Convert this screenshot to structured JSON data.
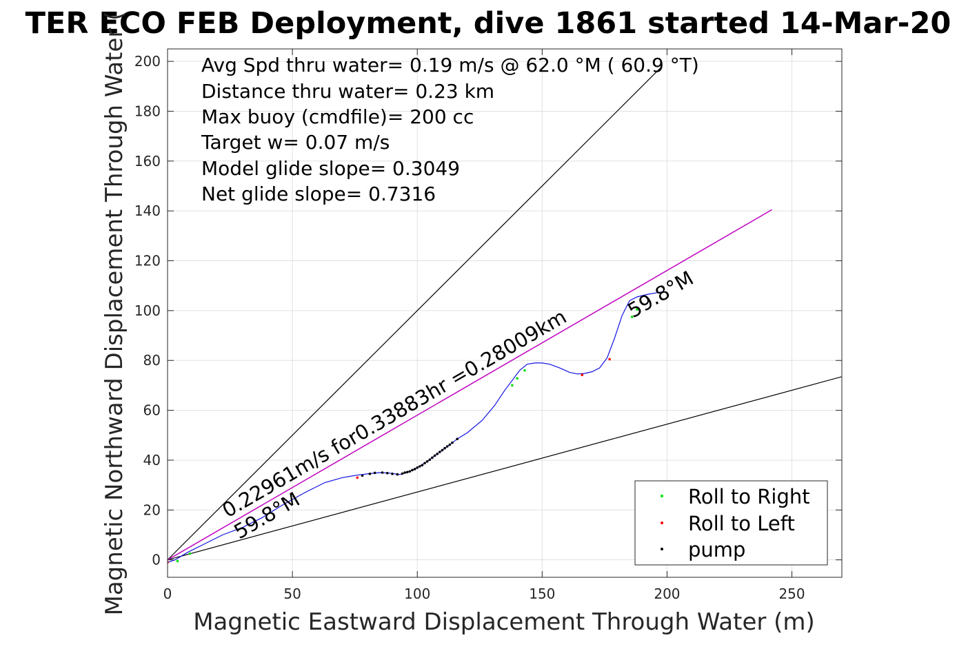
{
  "chart_data": {
    "type": "line",
    "title": "TER ECO FEB Deployment, dive 1861 started 14-Mar-20",
    "xlabel": "Magnetic Eastward Displacement Through Water (m)",
    "ylabel": "Magnetic Northward Displacement Through Water (",
    "xlim": [
      0,
      270
    ],
    "ylim": [
      -7,
      205
    ],
    "xticks": [
      0,
      50,
      100,
      150,
      200,
      250
    ],
    "yticks": [
      0,
      20,
      40,
      60,
      80,
      100,
      120,
      140,
      160,
      180,
      200
    ],
    "xtick_labels": [
      "0",
      "50",
      "100",
      "150",
      "200",
      "250"
    ],
    "ytick_labels": [
      "0",
      "20",
      "40",
      "60",
      "80",
      "100",
      "120",
      "140",
      "160",
      "180",
      "200"
    ],
    "grid": true,
    "legend_position": "bottom-right",
    "colors": {
      "track": "#1010e0",
      "target_line": "#c000c0",
      "roll_right": "#00e000",
      "roll_left": "#ff0000",
      "pump": "#000000",
      "bounds": "#000000",
      "grid": "#e0e0e0"
    },
    "info_lines": [
      "Avg Spd thru water=  0.19 m/s @  62.0 °M ( 60.9 °T)",
      "Distance thru water=  0.23 km",
      "Max buoy (cmdfile)= 200 cc",
      "Target w= 0.07 m/s",
      "Model glide slope= 0.3049",
      "Net glide slope= 0.7316"
    ],
    "annotations": {
      "heading_start": "59.8°M",
      "heading_end": "59.8°M",
      "target_text": "0.22961m/s for0.33883hr =0.28009km"
    },
    "legend": [
      {
        "label": "Roll to Right",
        "color": "#00e000"
      },
      {
        "label": "Roll to Left",
        "color": "#ff0000"
      },
      {
        "label": "pump",
        "color": "#000000"
      }
    ],
    "track": {
      "x": [
        0,
        3,
        8,
        14,
        22,
        30,
        38,
        46,
        55,
        63,
        70,
        76,
        80,
        85,
        89,
        93,
        97,
        100,
        104,
        108,
        112,
        116,
        120,
        126,
        131,
        135,
        138,
        141,
        144,
        147,
        150,
        153,
        157,
        161,
        164,
        167,
        170,
        173,
        176,
        179,
        182,
        185,
        188,
        192,
        198
      ],
      "y": [
        -1,
        0,
        3,
        6,
        10,
        13,
        17,
        22,
        27,
        31,
        33,
        34,
        34.5,
        35,
        34.8,
        34.2,
        35.5,
        37,
        39.5,
        42.5,
        45.5,
        48.5,
        51,
        56,
        62,
        68,
        72,
        76,
        78.5,
        79,
        79,
        78.5,
        77,
        75.2,
        74.6,
        74.8,
        75.5,
        77,
        81,
        89,
        98,
        104,
        105.5,
        106.5,
        107.5
      ]
    },
    "target_line": {
      "x": [
        0,
        242
      ],
      "y": [
        0,
        140.5
      ]
    },
    "bound_lines": [
      {
        "x": [
          0,
          198
        ],
        "y": [
          0,
          198
        ]
      },
      {
        "x": [
          0,
          270
        ],
        "y": [
          0,
          73.5
        ]
      }
    ],
    "roll_right_points": {
      "x": [
        4,
        9,
        138,
        140,
        143,
        186,
        188
      ],
      "y": [
        -0.5,
        2.5,
        70,
        72.8,
        76,
        97.5,
        100.5
      ]
    },
    "roll_left_points": {
      "x": [
        0,
        76,
        166,
        177
      ],
      "y": [
        -1,
        33,
        74.2,
        80.5
      ]
    },
    "pump_points": {
      "x": [
        78,
        81,
        83,
        86,
        88,
        90,
        92,
        94,
        95,
        96,
        97,
        98,
        99,
        100,
        101,
        102,
        103,
        104,
        105,
        106,
        107,
        108,
        109,
        110,
        111,
        112,
        113,
        114,
        116
      ],
      "y": [
        33.8,
        34.5,
        34.9,
        35,
        34.8,
        34.5,
        34.3,
        34.6,
        35,
        35.2,
        35.5,
        36,
        36.4,
        37,
        37.5,
        38,
        38.8,
        39.5,
        40.2,
        41,
        41.8,
        42.5,
        43.3,
        44,
        44.8,
        45.5,
        46.2,
        47,
        48.5
      ]
    }
  }
}
